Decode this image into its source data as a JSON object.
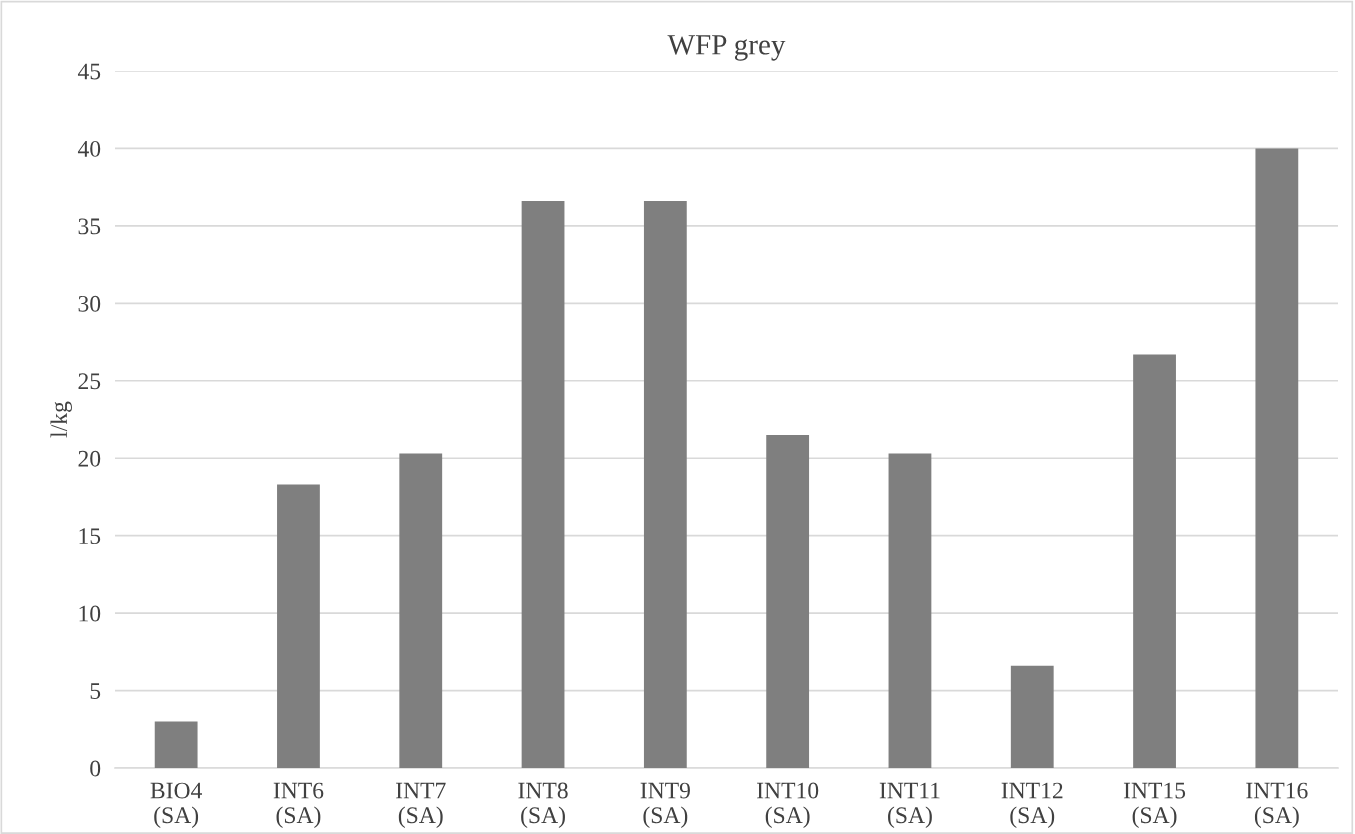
{
  "chart_data": {
    "type": "bar",
    "title": "WFP grey",
    "ylabel": "l/kg",
    "categories": [
      "BIO4\n(SA)",
      "INT6\n(SA)",
      "INT7\n(SA)",
      "INT8\n(SA)",
      "INT9\n(SA)",
      "INT10\n(SA)",
      "INT11\n(SA)",
      "INT12\n(SA)",
      "INT15\n(SA)",
      "INT16\n(SA)"
    ],
    "values": [
      3.0,
      18.3,
      20.3,
      36.6,
      36.6,
      21.5,
      20.3,
      6.6,
      26.7,
      40.0
    ],
    "color": "#7f7f7f",
    "ylim": [
      0,
      45
    ],
    "yticks": [
      0,
      5,
      10,
      15,
      20,
      25,
      30,
      35,
      40,
      45
    ],
    "grid": "y",
    "legend": false
  }
}
